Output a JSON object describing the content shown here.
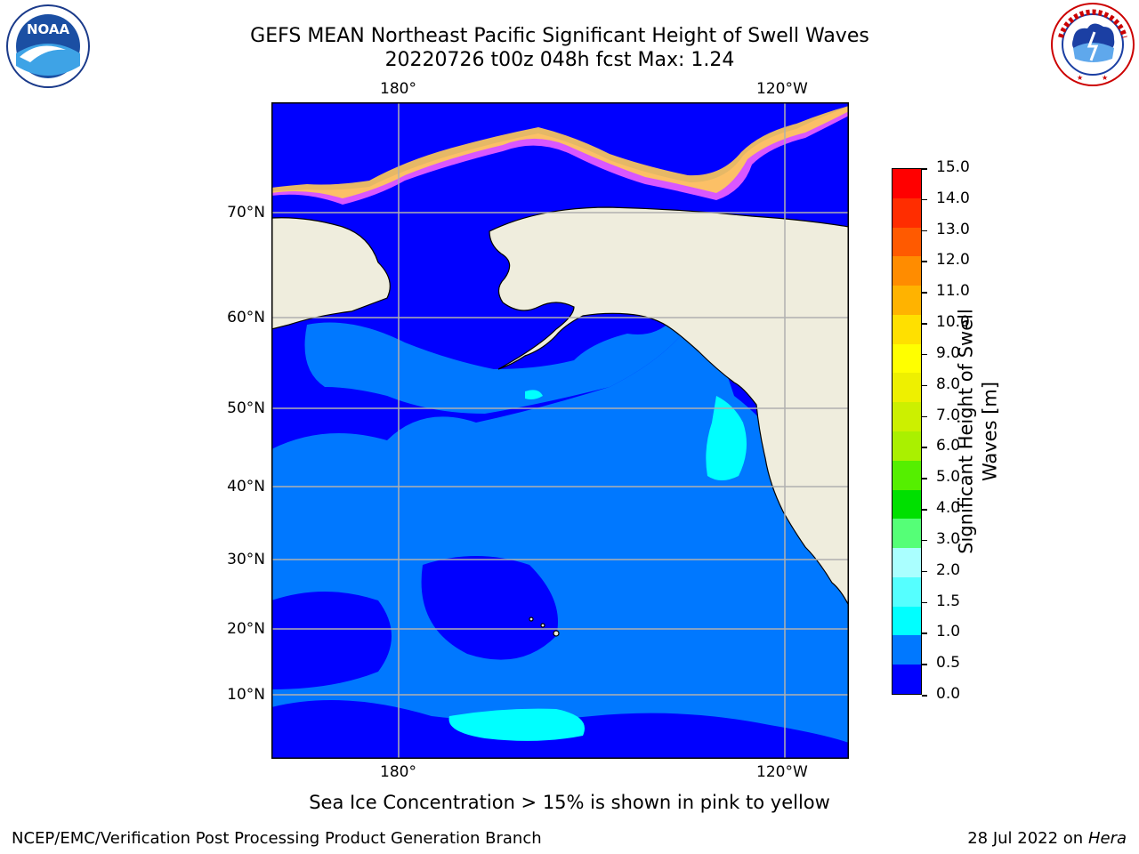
{
  "header": {
    "title_line1": "GEFS MEAN Northeast Pacific Significant Height of Swell Waves",
    "title_line2": "20220726 t00z 048h fcst   Max: 1.24"
  },
  "logos": {
    "left": "NOAA",
    "left_ring": "NATIONAL OCEANIC AND ATMOSPHERIC ADMINISTRATION · U.S. DEPARTMENT OF COMMERCE",
    "right_ring": "NATIONAL WEATHER SERVICE"
  },
  "map": {
    "lon_labels_top": [
      "180°",
      "120°W"
    ],
    "lon_labels_bottom": [
      "180°",
      "120°W"
    ],
    "lat_labels": [
      "70°N",
      "60°N",
      "50°N",
      "40°N",
      "30°N",
      "20°N",
      "10°N"
    ],
    "colors": {
      "ocean_0": "#0000ff",
      "ocean_05": "#0078ff",
      "ocean_10": "#00ffff",
      "land": "#efeddd",
      "grid": "#b0b0b0"
    }
  },
  "colorbar": {
    "label": "Significant Height of Swell Waves [m]",
    "label_line1": "Significant Height of Swell",
    "label_line2": "Waves [m]",
    "ticks": [
      "15.0",
      "14.0",
      "13.0",
      "12.0",
      "11.0",
      "10.0",
      "9.0",
      "8.0",
      "7.0",
      "6.0",
      "5.0",
      "4.0",
      "3.0",
      "2.0",
      "1.5",
      "1.0",
      "0.5",
      "0.0"
    ],
    "colors_bottom_to_top": [
      "#0000ff",
      "#0078ff",
      "#00ffff",
      "#55ffff",
      "#aaffff",
      "#55ff77",
      "#00e000",
      "#55ef00",
      "#aaf000",
      "#ccf000",
      "#eef000",
      "#ffff00",
      "#ffe000",
      "#ffb300",
      "#ff8c00",
      "#ff5a00",
      "#ff2d00",
      "#ff0000"
    ]
  },
  "footer": {
    "caption": "Sea Ice Concentration > 15% is shown in pink to yellow",
    "left": "NCEP/EMC/Verification Post Processing Product Generation Branch",
    "right_prefix": "28 Jul 2022 on ",
    "right_italic": "Hera"
  }
}
